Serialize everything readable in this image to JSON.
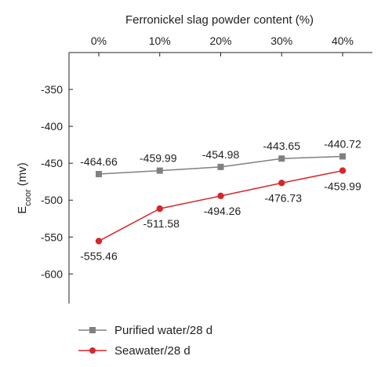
{
  "chart_data": {
    "type": "line",
    "x": [
      "0%",
      "10%",
      "20%",
      "30%",
      "40%"
    ],
    "xlabel": "Ferronickel slag powder content (%)",
    "ylabel_main": "E",
    "ylabel_sub": "coor",
    "ylabel_unit": " (mv)",
    "ylim": [
      -640,
      -300
    ],
    "yticks": [
      -350,
      -400,
      -450,
      -500,
      -550,
      -600
    ],
    "series": [
      {
        "name": "Purified water/28 d",
        "color": "#808080",
        "marker": "square",
        "values": [
          -464.66,
          -459.99,
          -454.98,
          -443.65,
          -440.72
        ],
        "labels": [
          "-464.66",
          "-459.99",
          "-454.98",
          "-443.65",
          "-440.72"
        ]
      },
      {
        "name": "Seawater/28 d",
        "color": "#d62728",
        "marker": "circle",
        "values": [
          -555.46,
          -511.58,
          -494.26,
          -476.73,
          -459.99
        ],
        "labels": [
          "-555.46",
          "-511.58",
          "-494.26",
          "-476.73",
          "-459.99"
        ]
      }
    ],
    "legend_position": "bottom-left",
    "grid": false
  }
}
